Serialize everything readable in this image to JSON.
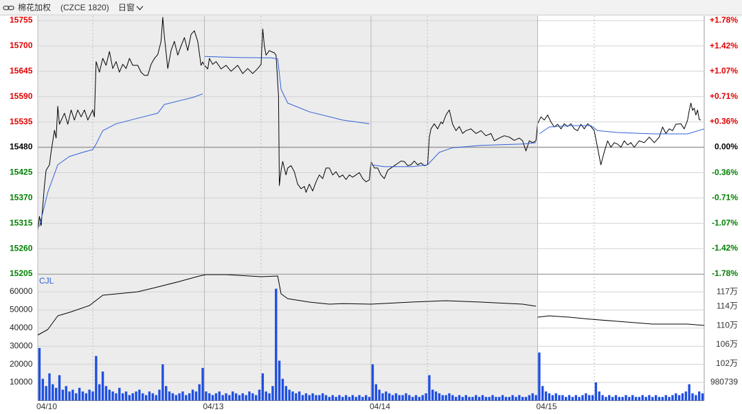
{
  "header": {
    "name": "棉花加权",
    "code": "(CZCE 1820)",
    "period": "日窗"
  },
  "chart_data": [
    {
      "type": "line",
      "reference": 15480,
      "up_color": "#e00000",
      "down_color": "#008000",
      "xlim": [
        0,
        400
      ],
      "ylim": [
        15205,
        15755
      ],
      "yticks": [
        15205,
        15260,
        15315,
        15370,
        15425,
        15480,
        15535,
        15590,
        15645,
        15700,
        15755
      ],
      "y2lim": [
        -1.78,
        1.78
      ],
      "y2ticks": [
        {
          "value": -1.78,
          "label": "-1.78%"
        },
        {
          "value": -1.42,
          "label": "-1.42%"
        },
        {
          "value": -1.07,
          "label": "-1.07%"
        },
        {
          "value": -0.71,
          "label": "-0.71%"
        },
        {
          "value": -0.36,
          "label": "-0.36%"
        },
        {
          "value": 0,
          "label": "0.00%"
        },
        {
          "value": 0.36,
          "label": "+0.36%"
        },
        {
          "value": 0.71,
          "label": "+0.71%"
        },
        {
          "value": 1.07,
          "label": "+1.07%"
        },
        {
          "value": 1.42,
          "label": "+1.42%"
        },
        {
          "value": 1.78,
          "label": "+1.78%"
        }
      ],
      "grid": true,
      "series": [
        {
          "color": "#000000",
          "x": [
            0,
            1,
            2,
            4,
            5,
            7,
            8,
            10,
            11,
            12,
            13,
            15,
            16,
            18,
            20,
            22,
            24,
            26,
            28,
            30,
            33,
            34,
            35,
            37,
            39,
            41,
            43,
            45,
            47,
            49,
            51,
            53,
            55,
            57,
            60,
            62,
            64,
            66,
            68,
            70,
            72,
            74,
            75,
            76,
            78,
            80,
            82,
            84,
            86,
            88,
            90,
            92,
            94,
            96,
            98,
            99,
            100,
            102,
            103,
            105,
            107,
            110,
            113,
            116,
            120,
            123,
            126,
            129,
            132,
            134,
            135,
            136,
            137,
            139,
            140,
            142,
            143,
            144.5,
            145,
            146,
            147,
            149,
            150,
            152,
            154,
            156,
            158,
            160,
            161,
            163,
            165,
            167,
            169,
            171,
            173,
            175,
            177,
            179,
            181,
            183,
            185,
            187,
            189,
            191,
            193,
            195,
            197,
            199,
            200,
            202,
            204,
            206,
            208,
            210,
            212,
            214,
            216,
            218,
            220,
            222,
            224,
            226,
            228,
            230,
            232,
            234,
            235,
            236,
            238,
            240,
            242,
            243,
            245,
            247,
            249,
            251,
            253,
            255,
            257,
            260,
            263,
            266,
            269,
            272,
            274,
            277,
            280,
            283,
            286,
            289,
            291,
            293,
            295,
            297,
            299,
            300,
            302,
            304,
            306,
            308,
            310,
            312,
            314,
            316,
            318,
            320,
            322,
            324,
            326,
            328,
            330,
            332,
            334,
            336,
            337,
            338,
            340,
            342,
            344,
            346,
            348,
            350,
            352,
            354,
            356,
            358,
            361,
            364,
            367,
            370,
            373,
            375,
            377,
            379,
            381,
            383,
            386,
            388,
            390,
            391,
            392,
            393,
            394,
            395,
            396,
            397,
            398
          ],
          "values": [
            15300,
            15330,
            15310,
            15397,
            15430,
            15442,
            15470,
            15517,
            15500,
            15569,
            15530,
            15546,
            15554,
            15530,
            15561,
            15539,
            15561,
            15546,
            15561,
            15539,
            15561,
            15546,
            15666,
            15643,
            15673,
            15658,
            15688,
            15651,
            15666,
            15643,
            15660,
            15651,
            15673,
            15658,
            15658,
            15643,
            15636,
            15636,
            15660,
            15673,
            15681,
            15710,
            15762,
            15720,
            15651,
            15690,
            15710,
            15680,
            15700,
            15718,
            15690,
            15725,
            15733,
            15710,
            15658,
            15665,
            15658,
            15650,
            15673,
            15660,
            15666,
            15650,
            15658,
            15645,
            15658,
            15640,
            15651,
            15640,
            15651,
            15660,
            15737,
            15700,
            15680,
            15690,
            15688,
            15685,
            15680,
            15591,
            15397,
            15430,
            15449,
            15420,
            15435,
            15440,
            15427,
            15400,
            15390,
            15395,
            15382,
            15400,
            15385,
            15405,
            15420,
            15412,
            15435,
            15435,
            15420,
            15427,
            15415,
            15420,
            15410,
            15420,
            15415,
            15420,
            15425,
            15412,
            15405,
            15409,
            15449,
            15435,
            15435,
            15420,
            15412,
            15430,
            15435,
            15440,
            15445,
            15450,
            15449,
            15440,
            15442,
            15450,
            15442,
            15446,
            15440,
            15442,
            15502,
            15520,
            15531,
            15520,
            15535,
            15531,
            15550,
            15561,
            15530,
            15516,
            15525,
            15510,
            15516,
            15520,
            15510,
            15516,
            15505,
            15510,
            15494,
            15500,
            15505,
            15502,
            15495,
            15500,
            15494,
            15472,
            15494,
            15490,
            15494,
            15531,
            15546,
            15539,
            15550,
            15535,
            15524,
            15530,
            15520,
            15531,
            15525,
            15531,
            15520,
            15516,
            15530,
            15520,
            15531,
            15525,
            15516,
            15479,
            15460,
            15442,
            15470,
            15494,
            15480,
            15490,
            15487,
            15480,
            15494,
            15485,
            15490,
            15480,
            15494,
            15490,
            15502,
            15490,
            15502,
            15524,
            15510,
            15520,
            15516,
            15530,
            15531,
            15520,
            15539,
            15560,
            15576,
            15560,
            15565,
            15550,
            15561,
            15540,
            15539
          ]
        },
        {
          "color": "#2f5fd8",
          "x": [
            1,
            6,
            12,
            19,
            27,
            33,
            35,
            39,
            47,
            60,
            72,
            76,
            85,
            93,
            99,
            null,
            100,
            120,
            140,
            144,
            146,
            150,
            163,
            183,
            199,
            null,
            200,
            208,
            225,
            234,
            241,
            249,
            266,
            291,
            299,
            null,
            301,
            307,
            319,
            332,
            336,
            348,
            369,
            390,
            400
          ],
          "values": [
            15308,
            15382,
            15442,
            15460,
            15469,
            15475,
            15487,
            15516,
            15531,
            15543,
            15554,
            15573,
            15581,
            15588,
            15596,
            null,
            15677,
            15675,
            15674,
            15672,
            15606,
            15576,
            15557,
            15539,
            15531,
            null,
            15442,
            15438,
            15438,
            15442,
            15469,
            15479,
            15484,
            15487,
            15490,
            null,
            15509,
            15524,
            15527,
            15527,
            15516,
            15512,
            15509,
            15509,
            15520
          ]
        }
      ]
    },
    {
      "type": "bar",
      "label": "CJL",
      "xlim": [
        0,
        400
      ],
      "xticks": [
        {
          "value": 0,
          "label": "04/10"
        },
        {
          "value": 100,
          "label": "04/13"
        },
        {
          "value": 200,
          "label": "04/14"
        },
        {
          "value": 300,
          "label": "04/15"
        }
      ],
      "ylim": [
        0,
        69500
      ],
      "yticks": [
        10000,
        20000,
        30000,
        40000,
        50000,
        60000
      ],
      "y2lim": [
        942739,
        1206739
      ],
      "y2ticks": [
        980739,
        {
          "value": 1020000,
          "label": "102万"
        },
        {
          "value": 1060000,
          "label": "106万"
        },
        {
          "value": 1100000,
          "label": "110万"
        },
        {
          "value": 1140000,
          "label": "114万"
        },
        {
          "value": 1170000,
          "label": "117万"
        }
      ],
      "grid": true,
      "series": [
        {
          "color": "#1f4fe0",
          "values": [
            29000,
            12000,
            8000,
            15000,
            9000,
            7000,
            14000,
            6000,
            8000,
            5000,
            6000,
            4000,
            7000,
            5000,
            4000,
            6000,
            5000,
            24600,
            9000,
            16000,
            8000,
            6000,
            5000,
            4000,
            7000,
            4000,
            5000,
            3000,
            4000,
            5000,
            6000,
            4000,
            3000,
            5000,
            4000,
            3000,
            6000,
            20000,
            8000,
            5000,
            4000,
            3000,
            4000,
            5000,
            3000,
            4000,
            6000,
            5000,
            9000,
            18000,
            5000,
            4000,
            3000,
            4000,
            5000,
            3000,
            4000,
            3000,
            5000,
            4000,
            3000,
            4000,
            3000,
            5000,
            4000,
            3000,
            6000,
            15000,
            5000,
            4000,
            8000,
            61700,
            22000,
            12000,
            8000,
            6000,
            5000,
            4000,
            5000,
            3000,
            4000,
            3000,
            4000,
            3000,
            3000,
            4000,
            3000,
            2000,
            3000,
            2000,
            3000,
            2000,
            3000,
            2000,
            3000,
            2000,
            3000,
            2000,
            3000,
            2000,
            20000,
            9000,
            6000,
            4000,
            5000,
            4000,
            3000,
            4000,
            3000,
            3000,
            4000,
            3000,
            2000,
            3000,
            2000,
            3000,
            4000,
            14000,
            6000,
            5000,
            4000,
            3000,
            3000,
            4000,
            3000,
            2000,
            3000,
            2000,
            3000,
            2000,
            2000,
            3000,
            2000,
            3000,
            2000,
            2000,
            3000,
            2000,
            2000,
            3000,
            2000,
            2000,
            3000,
            2000,
            3000,
            2000,
            2000,
            3000,
            4000,
            3000,
            26500,
            8000,
            5000,
            4000,
            3000,
            4000,
            3000,
            3000,
            2000,
            3000,
            2000,
            3000,
            2000,
            3000,
            4000,
            3000,
            3000,
            10000,
            5000,
            3000,
            2000,
            3000,
            2000,
            3000,
            2000,
            2000,
            3000,
            2000,
            3000,
            2000,
            2000,
            3000,
            2000,
            3000,
            2000,
            3000,
            2000,
            2000,
            3000,
            2000,
            3000,
            4000,
            3000,
            4000,
            5000,
            9000,
            4000,
            3000,
            5000,
            4000
          ]
        },
        {
          "type": "line",
          "axis": "y2",
          "color": "#000000",
          "x": [
            0,
            6,
            12,
            19,
            31,
            39,
            60,
            72,
            85,
            97,
            101,
            113,
            134,
            144,
            146,
            150,
            163,
            175,
            183,
            200,
            224,
            245,
            266,
            291,
            299,
            null,
            300,
            307,
            319,
            332,
            348,
            369,
            390,
            400
          ],
          "values": [
            1080000,
            1091600,
            1120400,
            1127600,
            1142000,
            1163500,
            1170700,
            1180800,
            1192300,
            1203800,
            1206700,
            1206700,
            1202400,
            1203800,
            1166400,
            1156300,
            1149100,
            1144800,
            1146000,
            1144800,
            1149100,
            1152000,
            1149100,
            1144800,
            1140500,
            null,
            1117500,
            1120400,
            1117500,
            1113200,
            1108800,
            1103100,
            1103100,
            1100200
          ]
        }
      ]
    }
  ]
}
